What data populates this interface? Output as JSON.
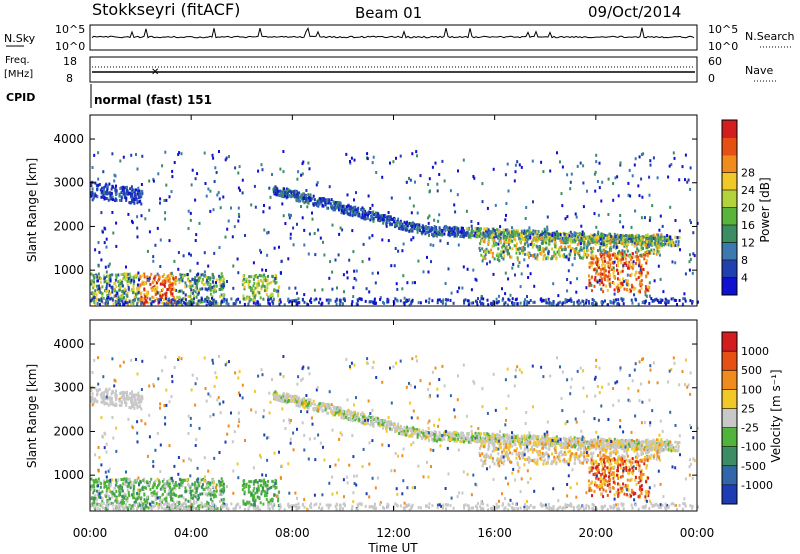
{
  "header": {
    "station": "Stokkseyri (fitACF)",
    "beam": "Beam 01",
    "date": "09/Oct/2014"
  },
  "top_panels": {
    "nsky": {
      "label": "N.Sky",
      "ticks": [
        "10^5",
        "10^0"
      ]
    },
    "nsearch": {
      "label": "N.Search",
      "ticks": [
        "10^5",
        "10^0"
      ]
    },
    "freq": {
      "label": "Freq.",
      "unit": "[MHz]",
      "ticks": [
        "18",
        "8"
      ]
    },
    "nave": {
      "label": "Nave",
      "ticks": [
        "60",
        "0"
      ]
    },
    "cpid": {
      "label": "CPID",
      "value": "normal (fast) 151"
    }
  },
  "chart_data": [
    {
      "type": "heatmap",
      "name": "Power",
      "ylabel": "Slant Range [km]",
      "xlabel": "Time UT",
      "x_ticks": [
        "00:00",
        "04:00",
        "08:00",
        "12:00",
        "16:00",
        "20:00",
        "00:00"
      ],
      "y_ticks": [
        "1000",
        "2000",
        "3000",
        "4000"
      ],
      "ylim": [
        180,
        4550
      ],
      "colorbar": {
        "label": "Power [dB]",
        "ticks": [
          "4",
          "8",
          "12",
          "16",
          "20",
          "24",
          "28"
        ],
        "colors": [
          "#1010d0",
          "#2040b0",
          "#3a7ab0",
          "#3c8c64",
          "#5ab43c",
          "#b4d23c",
          "#f0c828",
          "#f08c1e",
          "#e65014",
          "#d21e1e"
        ]
      }
    },
    {
      "type": "heatmap",
      "name": "Velocity",
      "ylabel": "Slant Range [km]",
      "xlabel": "Time UT",
      "x_ticks": [
        "00:00",
        "04:00",
        "08:00",
        "12:00",
        "16:00",
        "20:00",
        "00:00"
      ],
      "y_ticks": [
        "1000",
        "2000",
        "3000",
        "4000"
      ],
      "ylim": [
        180,
        4550
      ],
      "colorbar": {
        "label": "Velocity [m s⁻¹]",
        "ticks": [
          "1000",
          "500",
          "100",
          "25",
          "-25",
          "-100",
          "-500",
          "-1000"
        ],
        "colors": [
          "#1e3cb4",
          "#3266aa",
          "#3c8c64",
          "#50b43c",
          "#c8c8c8",
          "#f0c828",
          "#f08c1e",
          "#e65014",
          "#d21e1e"
        ]
      }
    }
  ]
}
